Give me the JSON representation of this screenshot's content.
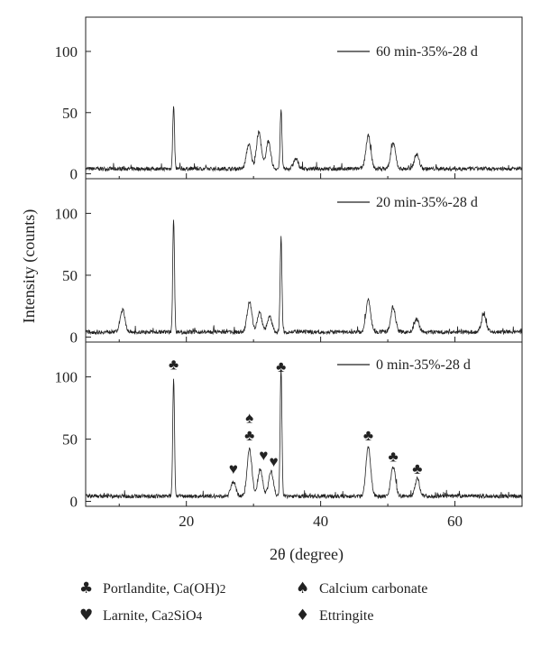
{
  "chart_data": {
    "type": "line",
    "xlabel": "2θ (degree)",
    "ylabel": "Intensity (counts)",
    "xlim": [
      5,
      70
    ],
    "ylim": [
      -4,
      128
    ],
    "x_ticks": [
      "20",
      "40",
      "60"
    ],
    "y_ticks": [
      "0",
      "50",
      "100"
    ],
    "panels": [
      {
        "series_name": "60 min-35%-28 d",
        "peaks": [
          [
            18.1,
            52
          ],
          [
            29.3,
            20
          ],
          [
            30.8,
            30
          ],
          [
            32.2,
            22
          ],
          [
            34.1,
            48
          ],
          [
            36.3,
            8
          ],
          [
            47.1,
            27
          ],
          [
            50.8,
            21
          ],
          [
            54.3,
            12
          ]
        ]
      },
      {
        "series_name": "20 min-35%-28 d",
        "peaks": [
          [
            10.5,
            18
          ],
          [
            18.1,
            92
          ],
          [
            29.4,
            24
          ],
          [
            30.9,
            16
          ],
          [
            32.4,
            12
          ],
          [
            34.1,
            76
          ],
          [
            47.1,
            26
          ],
          [
            50.8,
            20
          ],
          [
            54.3,
            11
          ],
          [
            64.3,
            14
          ]
        ]
      },
      {
        "series_name": "0 min-35%-28 d",
        "peaks": [
          [
            18.1,
            95
          ],
          [
            27.0,
            12
          ],
          [
            29.4,
            38
          ],
          [
            31.0,
            22
          ],
          [
            32.6,
            20
          ],
          [
            34.1,
            102
          ],
          [
            47.1,
            40
          ],
          [
            50.8,
            24
          ],
          [
            54.4,
            14
          ]
        ]
      }
    ],
    "annotations": [
      {
        "symbol": "♣",
        "x": 18.1,
        "y": 106
      },
      {
        "symbol": "♣",
        "x": 34.1,
        "y": 104
      },
      {
        "symbol": "♠",
        "x": 29.4,
        "y": 63
      },
      {
        "symbol": "♣",
        "x": 29.4,
        "y": 49
      },
      {
        "symbol": "♥",
        "x": 27.0,
        "y": 22
      },
      {
        "symbol": "♥",
        "x": 31.5,
        "y": 33
      },
      {
        "symbol": "♥",
        "x": 33.0,
        "y": 28
      },
      {
        "symbol": "♣",
        "x": 47.1,
        "y": 49
      },
      {
        "symbol": "♣",
        "x": 50.8,
        "y": 32
      },
      {
        "symbol": "♣",
        "x": 54.4,
        "y": 22
      }
    ]
  },
  "legend": [
    {
      "symbol": "♣",
      "label": "Portlandite, Ca(OH)",
      "sub": "2",
      "tail": ""
    },
    {
      "symbol": "♠",
      "label": "Calcium carbonate",
      "sub": "",
      "tail": ""
    },
    {
      "symbol": "♥",
      "label": "Larnite, Ca",
      "sub": "2",
      "tail": "SiO",
      "sub2": "4"
    },
    {
      "symbol": "♦",
      "label": "Ettringite",
      "sub": "",
      "tail": ""
    }
  ]
}
